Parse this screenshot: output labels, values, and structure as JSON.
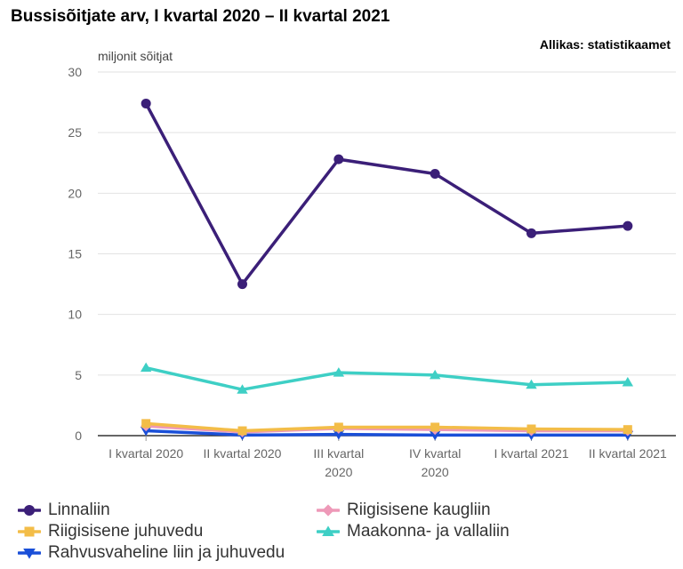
{
  "title": "Bussisõitjate arv, I kvartal 2020 – II kvartal 2021",
  "source": "Allikas: statistikaamet",
  "chart_data": {
    "type": "line",
    "ylabel": "miljonit sõitjat",
    "ylim": [
      0,
      30
    ],
    "yticks": [
      0,
      5,
      10,
      15,
      20,
      25,
      30
    ],
    "categories": [
      [
        "I kvartal 2020"
      ],
      [
        "II kvartal 2020"
      ],
      [
        "III kvartal",
        "2020"
      ],
      [
        "IV kvartal",
        "2020"
      ],
      [
        "I kvartal 2021"
      ],
      [
        "II kvartal 2021"
      ]
    ],
    "series": [
      {
        "name": "Linnaliin",
        "color": "#3b1f78",
        "marker": "circle",
        "values": [
          27.4,
          12.5,
          22.8,
          21.6,
          16.7,
          17.3
        ]
      },
      {
        "name": "Riigisisene kaugliin",
        "color": "#ee99b8",
        "marker": "diamond",
        "values": [
          0.8,
          0.3,
          0.6,
          0.5,
          0.4,
          0.4
        ]
      },
      {
        "name": "Riigisisene juhuvedu",
        "color": "#f3bd48",
        "marker": "square",
        "values": [
          1.0,
          0.4,
          0.7,
          0.7,
          0.55,
          0.5
        ]
      },
      {
        "name": "Maakonna- ja vallaliin",
        "color": "#3ecfc5",
        "marker": "triangle-up",
        "values": [
          5.6,
          3.8,
          5.2,
          5.0,
          4.2,
          4.4
        ]
      },
      {
        "name": "Rahvusvaheline liin ja juhuvedu",
        "color": "#1a4fd8",
        "marker": "triangle-down",
        "values": [
          0.4,
          0.05,
          0.1,
          0.05,
          0.05,
          0.05
        ]
      }
    ],
    "grid": true,
    "legend_position": "bottom"
  }
}
